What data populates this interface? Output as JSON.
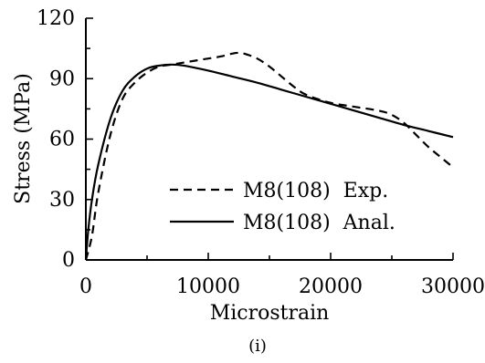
{
  "chart_data": {
    "type": "line",
    "title": "",
    "xlabel": "Microstrain",
    "ylabel": "Stress (MPa)",
    "caption": "(i)",
    "xlim": [
      0,
      30000
    ],
    "ylim": [
      0,
      120
    ],
    "xticks": [
      0,
      10000,
      20000,
      30000
    ],
    "yticks": [
      0,
      30,
      60,
      90,
      120
    ],
    "xtick_labels": [
      "0",
      "10000",
      "20000",
      "30000"
    ],
    "ytick_labels": [
      "0",
      "30",
      "60",
      "90",
      "120"
    ],
    "grid": false,
    "legend_position": "lower-right",
    "series": [
      {
        "name": "M8(108)  Exp.",
        "style": "dashed",
        "color": "#000000",
        "x": [
          0,
          500,
          1000,
          2000,
          3000,
          4000,
          5000,
          6000,
          7000,
          8000,
          9000,
          10000,
          11000,
          12000,
          12500,
          13000,
          14000,
          15000,
          16000,
          17000,
          18000,
          20000,
          22000,
          24000,
          25000,
          26000,
          27000,
          28000,
          29000,
          30000
        ],
        "y": [
          0,
          12,
          33,
          62,
          80,
          88,
          93,
          96,
          97,
          98,
          99,
          100,
          101,
          102.5,
          102.8,
          102.3,
          100,
          96,
          91,
          86,
          82,
          78,
          76,
          74,
          72,
          68,
          62,
          56,
          51,
          46
        ]
      },
      {
        "name": "M8(108)  Anal.",
        "style": "solid",
        "color": "#000000",
        "x": [
          0,
          200,
          500,
          1000,
          2000,
          3000,
          4000,
          5000,
          6000,
          7000,
          8000,
          10000,
          12000,
          14000,
          16000,
          18000,
          20000,
          22000,
          24000,
          26000,
          28000,
          30000
        ],
        "y": [
          0,
          15,
          30,
          47,
          70,
          84,
          91,
          95,
          96.5,
          97,
          96.5,
          94,
          91,
          88,
          84.5,
          81,
          77.5,
          74,
          70.5,
          67,
          64,
          61
        ]
      }
    ]
  }
}
